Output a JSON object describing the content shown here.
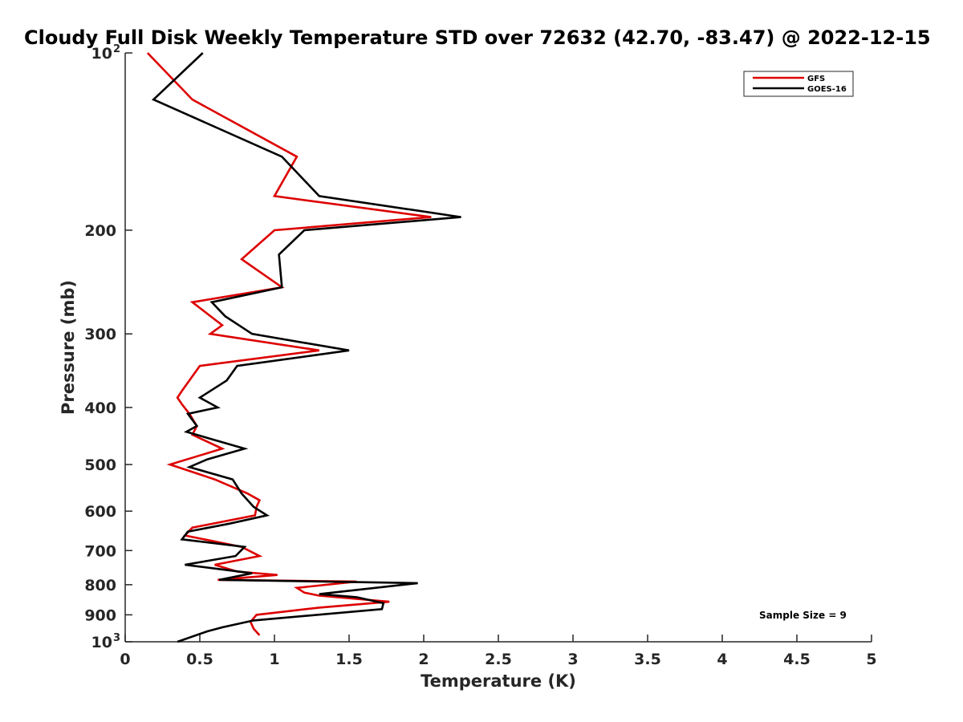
{
  "chart_data": {
    "type": "line",
    "title": "Cloudy Full Disk Weekly Temperature STD over 72632 (42.70, -83.47) @ 2022-12-15",
    "xlabel": "Temperature (K)",
    "ylabel": "Pressure (mb)",
    "xlim": [
      0,
      5
    ],
    "ylim": [
      1000,
      100
    ],
    "y_scale": "log",
    "y_reversed": true,
    "x_ticks": [
      "0",
      "0.5",
      "1",
      "1.5",
      "2",
      "2.5",
      "3",
      "3.5",
      "4",
      "4.5",
      "5"
    ],
    "y_ticks": [
      {
        "value": 100,
        "label": "10",
        "sup": "2"
      },
      {
        "value": 200,
        "label": "200",
        "sup": ""
      },
      {
        "value": 300,
        "label": "300",
        "sup": ""
      },
      {
        "value": 400,
        "label": "400",
        "sup": ""
      },
      {
        "value": 500,
        "label": "500",
        "sup": ""
      },
      {
        "value": 600,
        "label": "600",
        "sup": ""
      },
      {
        "value": 700,
        "label": "700",
        "sup": ""
      },
      {
        "value": 800,
        "label": "800",
        "sup": ""
      },
      {
        "value": 900,
        "label": "900",
        "sup": ""
      },
      {
        "value": 1000,
        "label": "10",
        "sup": "3"
      }
    ],
    "grid": false,
    "legend_position": "top-right",
    "annotation": "Sample Size = 9",
    "series": [
      {
        "name": "GFS",
        "color": "#dd0000",
        "points": [
          [
            0.15,
            100
          ],
          [
            0.45,
            120
          ],
          [
            1.15,
            150
          ],
          [
            1.0,
            175
          ],
          [
            2.05,
            190
          ],
          [
            1.0,
            200
          ],
          [
            0.78,
            224
          ],
          [
            1.05,
            250
          ],
          [
            0.45,
            265
          ],
          [
            0.65,
            290
          ],
          [
            0.57,
            300
          ],
          [
            1.3,
            320
          ],
          [
            0.5,
            340
          ],
          [
            0.38,
            375
          ],
          [
            0.35,
            385
          ],
          [
            0.38,
            395
          ],
          [
            0.43,
            410
          ],
          [
            0.48,
            430
          ],
          [
            0.45,
            445
          ],
          [
            0.65,
            470
          ],
          [
            0.3,
            500
          ],
          [
            0.6,
            530
          ],
          [
            0.82,
            560
          ],
          [
            0.9,
            575
          ],
          [
            0.88,
            590
          ],
          [
            0.87,
            610
          ],
          [
            0.45,
            640
          ],
          [
            0.4,
            660
          ],
          [
            0.78,
            690
          ],
          [
            0.9,
            715
          ],
          [
            0.6,
            740
          ],
          [
            0.75,
            760
          ],
          [
            1.02,
            770
          ],
          [
            0.62,
            785
          ],
          [
            1.55,
            790
          ],
          [
            1.15,
            810
          ],
          [
            1.2,
            825
          ],
          [
            1.3,
            835
          ],
          [
            1.77,
            855
          ],
          [
            1.3,
            875
          ],
          [
            0.88,
            900
          ],
          [
            0.84,
            925
          ],
          [
            0.86,
            950
          ],
          [
            0.9,
            975
          ]
        ]
      },
      {
        "name": "GOES-16",
        "color": "#000000",
        "points": [
          [
            0.52,
            100
          ],
          [
            0.19,
            120
          ],
          [
            1.05,
            150
          ],
          [
            1.3,
            175
          ],
          [
            2.25,
            190
          ],
          [
            1.2,
            200
          ],
          [
            1.03,
            220
          ],
          [
            1.05,
            250
          ],
          [
            0.58,
            265
          ],
          [
            0.67,
            280
          ],
          [
            0.85,
            300
          ],
          [
            1.5,
            320
          ],
          [
            0.75,
            340
          ],
          [
            0.68,
            360
          ],
          [
            0.5,
            385
          ],
          [
            0.62,
            400
          ],
          [
            0.42,
            410
          ],
          [
            0.48,
            430
          ],
          [
            0.41,
            440
          ],
          [
            0.8,
            470
          ],
          [
            0.55,
            490
          ],
          [
            0.43,
            505
          ],
          [
            0.72,
            530
          ],
          [
            0.78,
            560
          ],
          [
            0.86,
            590
          ],
          [
            0.95,
            610
          ],
          [
            0.7,
            630
          ],
          [
            0.42,
            650
          ],
          [
            0.38,
            670
          ],
          [
            0.8,
            690
          ],
          [
            0.74,
            715
          ],
          [
            0.4,
            740
          ],
          [
            0.85,
            765
          ],
          [
            0.63,
            785
          ],
          [
            1.96,
            795
          ],
          [
            1.3,
            830
          ],
          [
            1.55,
            840
          ],
          [
            1.73,
            860
          ],
          [
            1.72,
            880
          ],
          [
            0.86,
            920
          ],
          [
            0.65,
            945
          ],
          [
            0.55,
            960
          ],
          [
            0.35,
            1000
          ]
        ]
      }
    ]
  }
}
